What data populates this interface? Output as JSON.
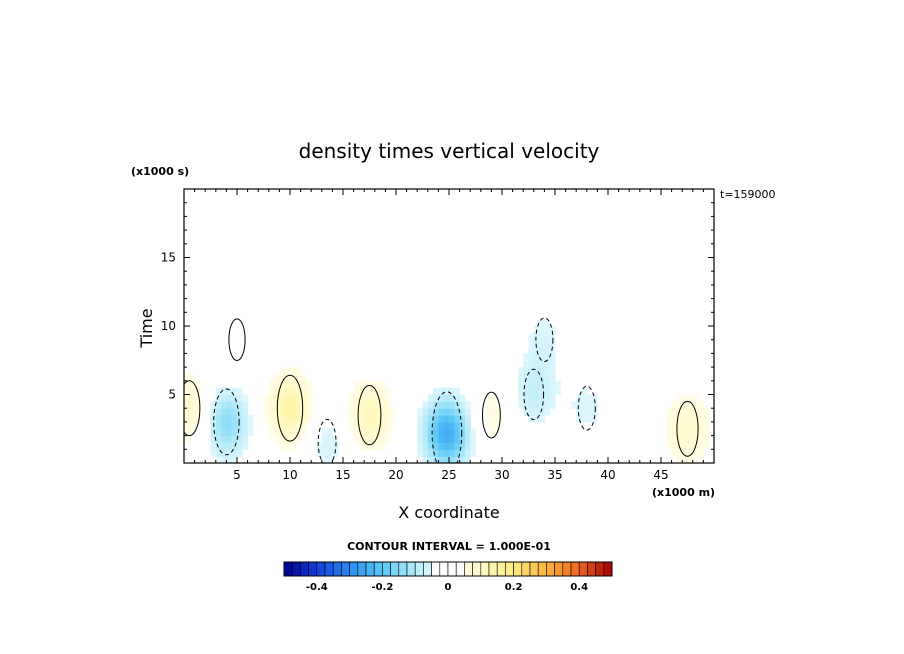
{
  "chart_data": {
    "type": "heatmap",
    "title": "density times vertical velocity",
    "xlabel": "X coordinate",
    "ylabel": "Time",
    "x_unit": "(x1000 m)",
    "y_unit": "(x1000 s)",
    "time_annotation": "t=159000",
    "contour_interval_text": "CONTOUR INTERVAL = 1.000E-01",
    "xlim": [
      0,
      50
    ],
    "ylim": [
      0,
      20
    ],
    "x_ticks": [
      5,
      10,
      15,
      20,
      25,
      30,
      35,
      40,
      45
    ],
    "y_ticks": [
      5,
      10,
      15
    ],
    "colorbar": {
      "range": [
        -0.5,
        0.5
      ],
      "ticks": [
        -0.4,
        -0.2,
        0,
        0.2,
        0.4
      ],
      "tick_labels": [
        "-0.4",
        "-0.2",
        "0",
        "0.2",
        "0.4"
      ]
    },
    "features": [
      {
        "kind": "min",
        "x": 4,
        "y": 3,
        "value": -0.15
      },
      {
        "kind": "max",
        "x": 10,
        "y": 4,
        "value": 0.15
      },
      {
        "kind": "max",
        "x": 17.5,
        "y": 3.5,
        "value": 0.12
      },
      {
        "kind": "min",
        "x": 13.5,
        "y": 1.5,
        "value": -0.06
      },
      {
        "kind": "min",
        "x": 24.8,
        "y": 2.2,
        "value": -0.25
      },
      {
        "kind": "max",
        "x": 29,
        "y": 3.5,
        "value": 0.06
      },
      {
        "kind": "min",
        "x": 33,
        "y": 5,
        "value": -0.08
      },
      {
        "kind": "min",
        "x": 38,
        "y": 4,
        "value": -0.05
      },
      {
        "kind": "max",
        "x": 47.5,
        "y": 2.5,
        "value": 0.1
      },
      {
        "kind": "max",
        "x": 0.5,
        "y": 4,
        "value": 0.1
      },
      {
        "kind": "max",
        "x": 5,
        "y": 9,
        "value": 0.04
      },
      {
        "kind": "min",
        "x": 34,
        "y": 9,
        "value": -0.05
      }
    ]
  }
}
